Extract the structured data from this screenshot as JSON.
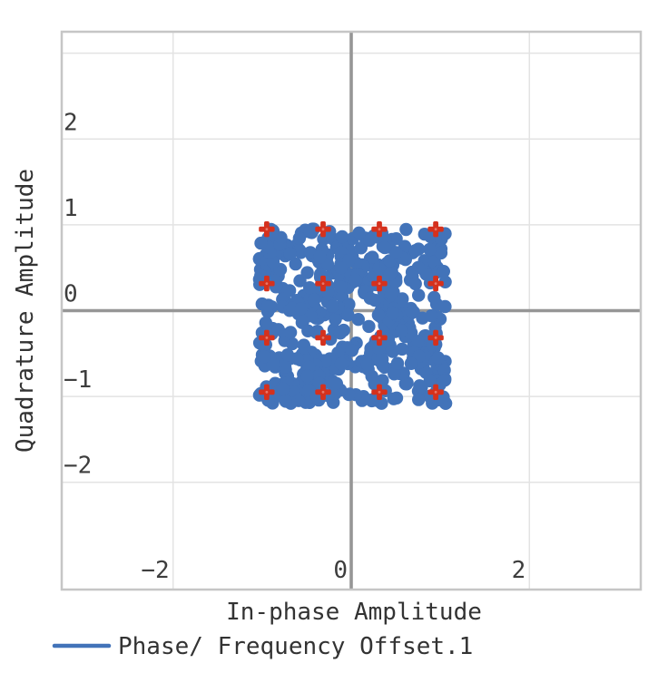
{
  "figure": {
    "background": "#ffffff",
    "legend": {
      "label": "Phase/ Frequency Offset.1",
      "swatch": "line",
      "position": "bottom-left"
    }
  },
  "palette": {
    "series_blue": "#4273b9",
    "reference_red": "#d5311d",
    "grid_line": "#e3e3e3",
    "frame_border": "#c6c6c6",
    "zero_line": "#969696",
    "tick_text": "#3d3d3d",
    "label_text": "#333333",
    "background": "#ffffff"
  },
  "chart_data": {
    "type": "scatter",
    "title": "",
    "xlabel": "In-phase Amplitude",
    "ylabel": "Quadrature Amplitude",
    "xlim": [
      -3.25,
      3.25
    ],
    "ylim": [
      -3.25,
      3.25
    ],
    "grid": true,
    "x_ticks": [
      -2,
      0,
      2
    ],
    "x_tick_labels": [
      "−2",
      "0",
      "2"
    ],
    "y_ticks": [
      2,
      1,
      0,
      -1,
      -2
    ],
    "y_tick_labels": [
      "2",
      "1",
      "0",
      "−1",
      "−2"
    ],
    "x_gridlines": [
      -2,
      2
    ],
    "y_gridlines": [
      3,
      2,
      1,
      -1,
      -2
    ],
    "zero_axes": true,
    "legend_position": "bottom-left",
    "series": [
      {
        "name": "Phase/ Frequency Offset.1",
        "kind": "noise-cloud",
        "marker": "circle",
        "marker_radius_px": 7.2,
        "color": "#4273b9",
        "cloud": {
          "seed": 12,
          "count": 560,
          "x_min": -1.03,
          "x_max": 1.06,
          "y_min": -1.08,
          "y_max": 0.95,
          "clump_prob": 0.25,
          "clump_spread": 0.12
        }
      },
      {
        "name": "reference-constellation-16QAM",
        "kind": "reference-points",
        "marker": "plus",
        "marker_halfwidth_px": 8.7,
        "marker_halfthickness_px": 2.9,
        "color": "#d5311d",
        "levels": [
          -0.949,
          -0.316,
          0.316,
          0.949
        ],
        "points": [
          [
            -0.949,
            0.949
          ],
          [
            -0.316,
            0.949
          ],
          [
            0.316,
            0.949
          ],
          [
            0.949,
            0.949
          ],
          [
            -0.949,
            0.316
          ],
          [
            -0.316,
            0.316
          ],
          [
            0.316,
            0.316
          ],
          [
            0.949,
            0.316
          ],
          [
            -0.949,
            -0.316
          ],
          [
            -0.316,
            -0.316
          ],
          [
            0.316,
            -0.316
          ],
          [
            0.949,
            -0.316
          ],
          [
            -0.949,
            -0.949
          ],
          [
            -0.316,
            -0.949
          ],
          [
            0.316,
            -0.949
          ],
          [
            0.949,
            -0.949
          ]
        ]
      }
    ]
  }
}
